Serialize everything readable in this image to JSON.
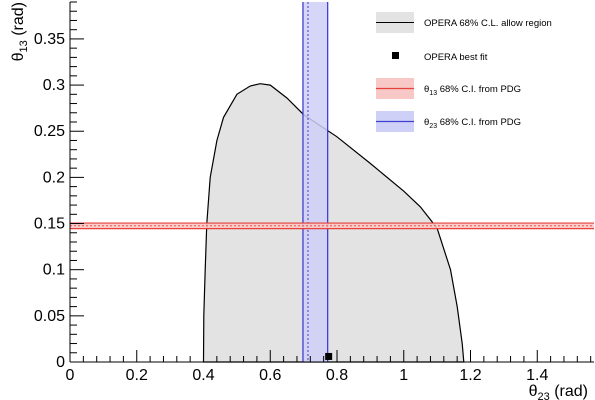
{
  "chart_data": {
    "type": "area",
    "title": "",
    "xlabel": {
      "symbol": "θ",
      "sub": "23",
      "unit": " (rad)"
    },
    "ylabel": {
      "symbol": "θ",
      "sub": "13",
      "unit": " (rad)"
    },
    "xlim": [
      0,
      1.57
    ],
    "ylim": [
      0,
      0.39
    ],
    "xticks": [
      0,
      0.2,
      0.4,
      0.6,
      0.8,
      1,
      1.2,
      1.4
    ],
    "xtick_labels": [
      "0",
      "0.2",
      "0.4",
      "0.6",
      "0.8",
      "1",
      "1.2",
      "1.4"
    ],
    "yticks": [
      0,
      0.05,
      0.1,
      0.15,
      0.2,
      0.25,
      0.3,
      0.35
    ],
    "ytick_labels": [
      "0",
      "0.05",
      "0.1",
      "0.15",
      "0.2",
      "0.25",
      "0.3",
      "0.35"
    ],
    "grid": false,
    "legend_position": "top-right",
    "allowed_region": {
      "name": "OPERA 68% C.L. allow region",
      "fill": "#e3e3e3",
      "stroke": "#000000",
      "x": [
        0.4,
        0.401,
        0.405,
        0.41,
        0.42,
        0.44,
        0.46,
        0.5,
        0.54,
        0.57,
        0.6,
        0.65,
        0.7,
        0.75,
        0.8,
        0.9,
        1.0,
        1.05,
        1.1,
        1.14,
        1.16,
        1.175,
        1.18
      ],
      "y": [
        0.0,
        0.05,
        0.1,
        0.15,
        0.2,
        0.24,
        0.265,
        0.29,
        0.299,
        0.3015,
        0.3,
        0.286,
        0.268,
        0.256,
        0.244,
        0.215,
        0.185,
        0.168,
        0.145,
        0.1,
        0.06,
        0.02,
        0.0
      ]
    },
    "best_fit": {
      "name": "OPERA best fit",
      "x": 0.775,
      "y": 0.006,
      "color": "#000000"
    },
    "theta13_band": {
      "name_symbol": "θ",
      "name_sub": "13",
      "name_text": " 68% C.I. from PDG",
      "center": 0.1475,
      "low": 0.1445,
      "high": 0.1505,
      "stroke": "#e8413a",
      "fill": "#f7c8c5"
    },
    "theta23_band": {
      "name_symbol": "θ",
      "name_sub": "23",
      "name_text": " 68% C.I. from PDG",
      "center": 0.713,
      "low": 0.698,
      "high": 0.772,
      "stroke": "#4040d0",
      "fill": "#cfd0f7"
    }
  }
}
